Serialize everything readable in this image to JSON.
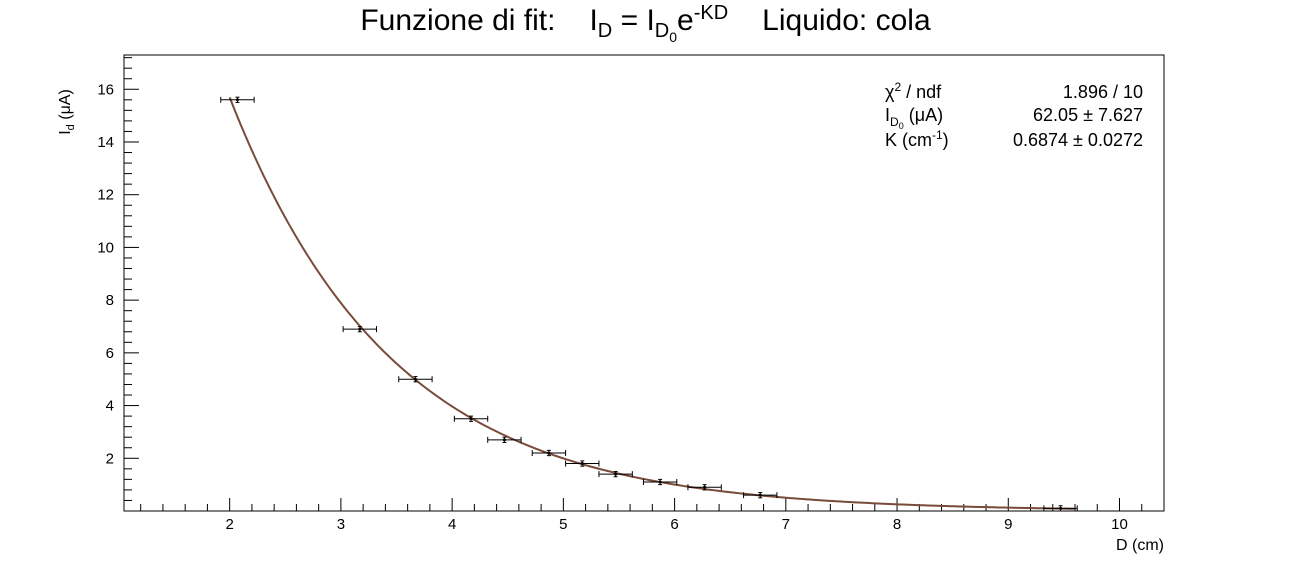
{
  "title": {
    "prefix": "Funzione di fit:",
    "formula_I": "I",
    "formula_D_sub": "D",
    "formula_eq": " = I",
    "formula_D0_sub": "D",
    "formula_0_sub": "0",
    "formula_e": "e",
    "formula_exp": "-KD",
    "liquid": "Liquido: cola"
  },
  "stats": {
    "row1_label": "χ² / ndf",
    "row1_value": "1.896 / 10",
    "row2_label": "I_D0 (μA)",
    "row2_value": "62.05 ± 7.627",
    "row3_label": "K (cm⁻¹)",
    "row3_value": "0.6874 ± 0.0272"
  },
  "chart_data": {
    "type": "scatter",
    "xlabel": "D (cm)",
    "ylabel": "I_d (μA)",
    "xlim": [
      1.05,
      10.4
    ],
    "ylim": [
      0,
      17.3
    ],
    "x_ticks": [
      2,
      3,
      4,
      5,
      6,
      7,
      8,
      9,
      10
    ],
    "y_ticks": [
      2,
      4,
      6,
      8,
      10,
      12,
      14,
      16
    ],
    "series": [
      {
        "points": [
          {
            "x": 2.07,
            "y": 15.6,
            "xerr": 0.15,
            "yerr": 0.1
          },
          {
            "x": 3.17,
            "y": 6.9,
            "xerr": 0.15,
            "yerr": 0.1
          },
          {
            "x": 3.67,
            "y": 5.0,
            "xerr": 0.15,
            "yerr": 0.1
          },
          {
            "x": 4.17,
            "y": 3.5,
            "xerr": 0.15,
            "yerr": 0.1
          },
          {
            "x": 4.47,
            "y": 2.7,
            "xerr": 0.15,
            "yerr": 0.1
          },
          {
            "x": 4.87,
            "y": 2.2,
            "xerr": 0.15,
            "yerr": 0.1
          },
          {
            "x": 5.17,
            "y": 1.8,
            "xerr": 0.15,
            "yerr": 0.1
          },
          {
            "x": 5.47,
            "y": 1.4,
            "xerr": 0.15,
            "yerr": 0.1
          },
          {
            "x": 5.87,
            "y": 1.1,
            "xerr": 0.15,
            "yerr": 0.1
          },
          {
            "x": 6.27,
            "y": 0.9,
            "xerr": 0.15,
            "yerr": 0.1
          },
          {
            "x": 6.77,
            "y": 0.6,
            "xerr": 0.15,
            "yerr": 0.1
          },
          {
            "x": 9.47,
            "y": 0.1,
            "xerr": 0.15,
            "yerr": 0.1
          }
        ],
        "color": "#000000"
      }
    ],
    "fit": {
      "function": "I0 * exp(-K * D)",
      "I0": 62.05,
      "K": 0.6874,
      "x_range": [
        2.0,
        9.6
      ],
      "color": "#7a4a3a"
    },
    "grid": false,
    "legend": "top-right"
  }
}
